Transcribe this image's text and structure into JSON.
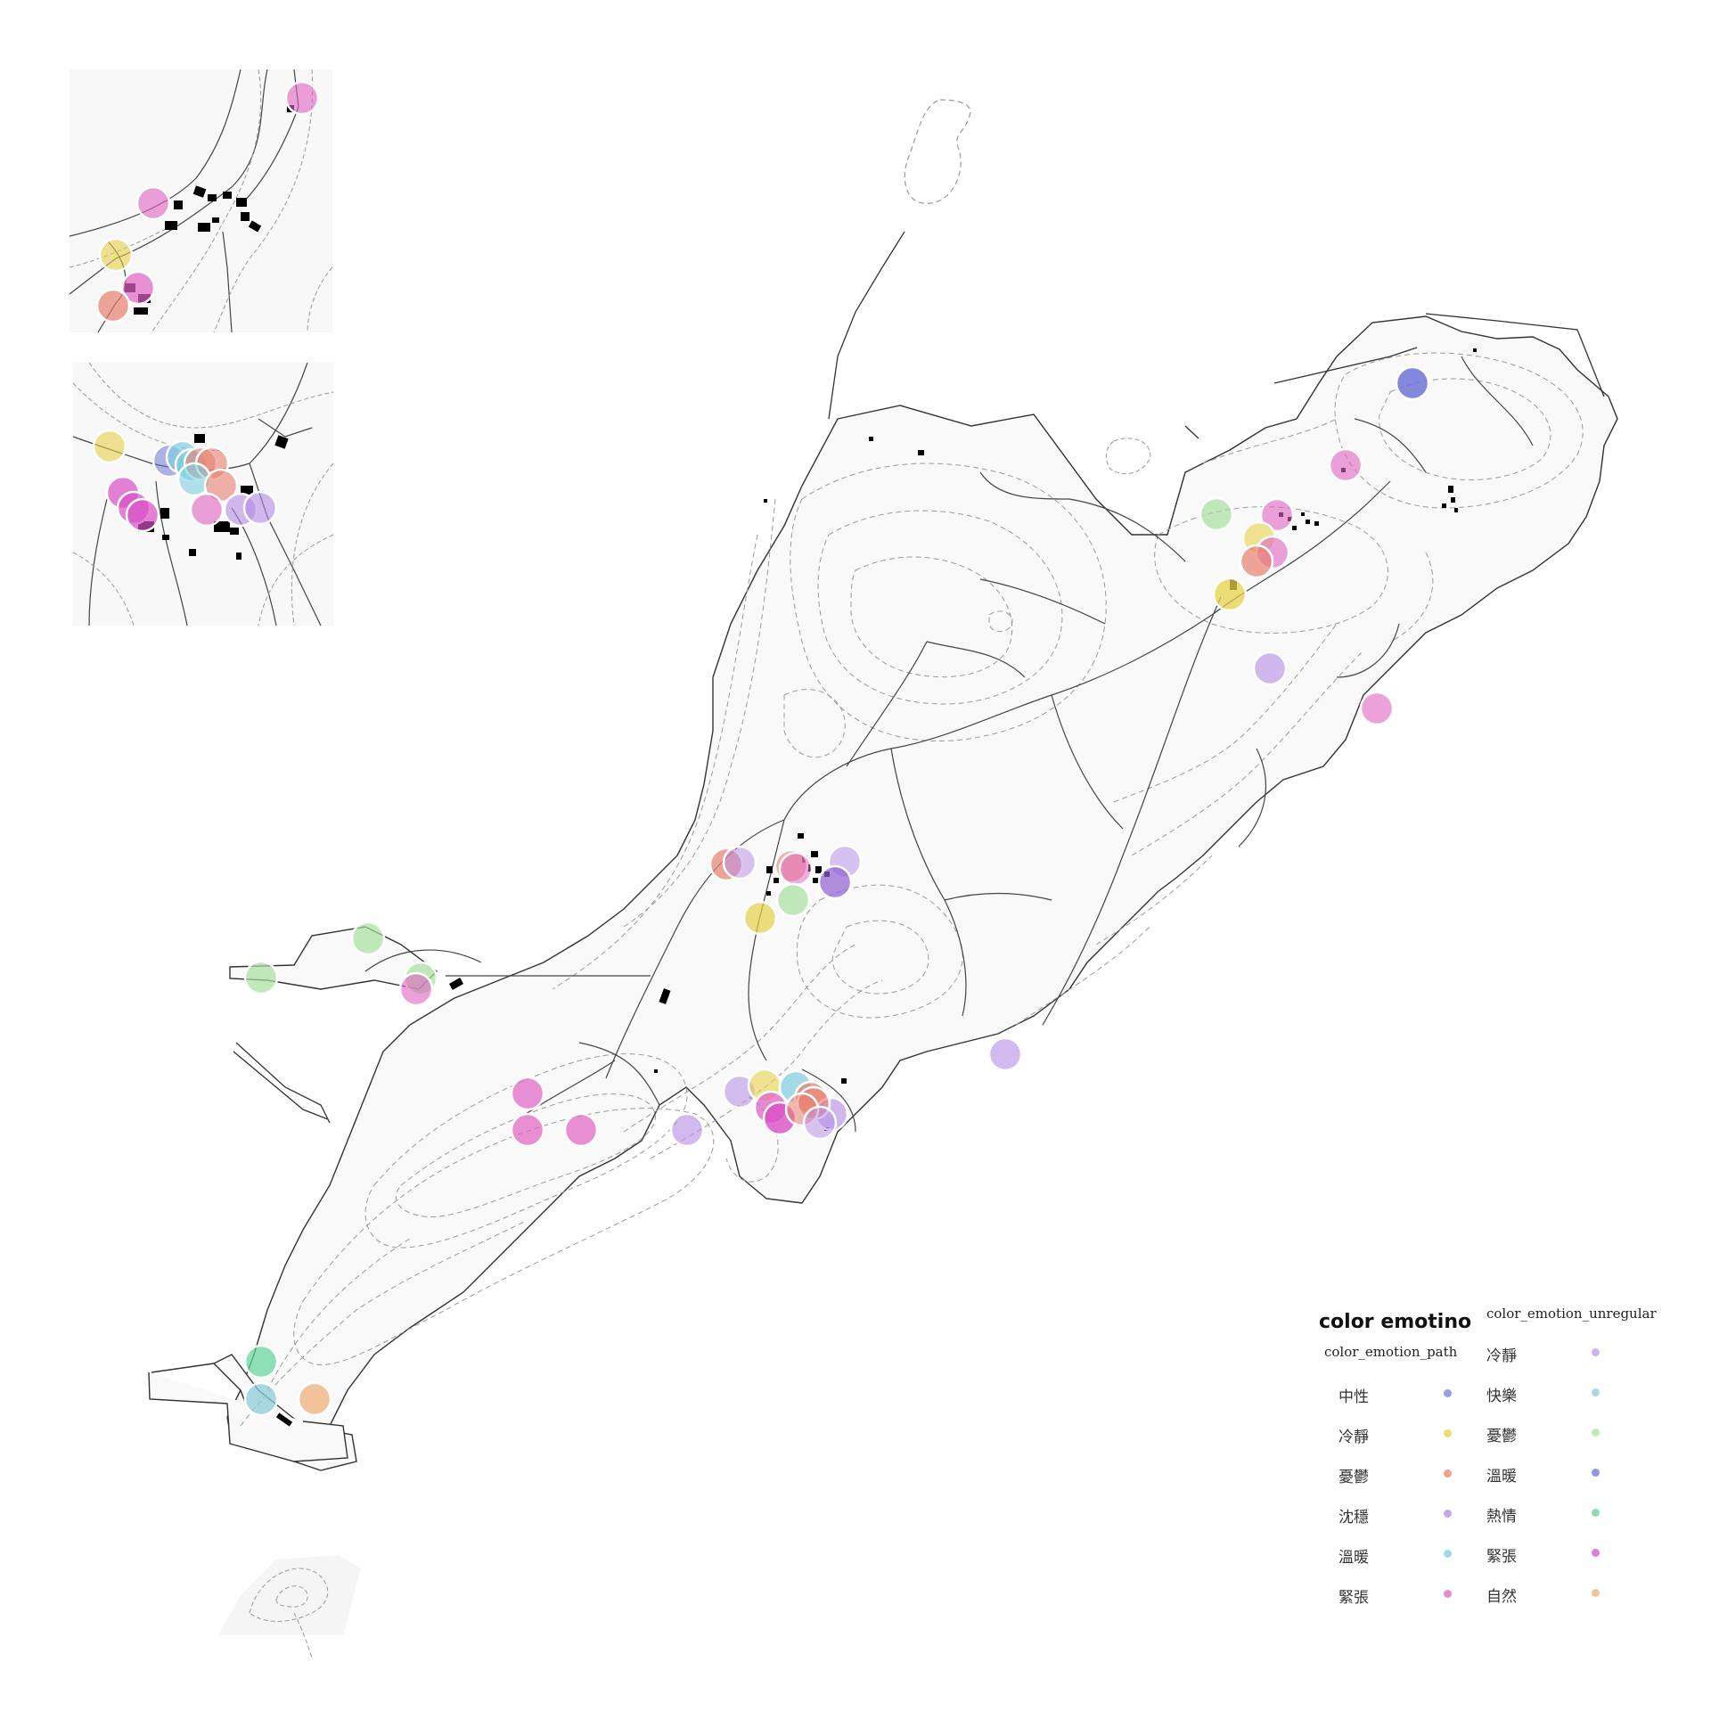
{
  "legend": {
    "title": "color emotino",
    "path": {
      "field": "color_emotion_path",
      "items": [
        {
          "label": "中性",
          "color": "#6f7fd8"
        },
        {
          "label": "冷靜",
          "color": "#e6d24a"
        },
        {
          "label": "憂鬱",
          "color": "#e8806f"
        },
        {
          "label": "沈穩",
          "color": "#b48ae6"
        },
        {
          "label": "溫暖",
          "color": "#7ecfe0"
        },
        {
          "label": "緊張",
          "color": "#e063c2"
        }
      ]
    },
    "unregular": {
      "field": "color_emotion_unregular",
      "items": [
        {
          "label": "冷靜",
          "color": "#b79be8"
        },
        {
          "label": "快樂",
          "color": "#8ecbd8"
        },
        {
          "label": "憂鬱",
          "color": "#a8e0a0"
        },
        {
          "label": "溫暖",
          "color": "#6f74d6"
        },
        {
          "label": "熱情",
          "color": "#5fd49a"
        },
        {
          "label": "緊張",
          "color": "#d94fc4"
        },
        {
          "label": "自然",
          "color": "#efb07a"
        }
      ]
    }
  }
}
